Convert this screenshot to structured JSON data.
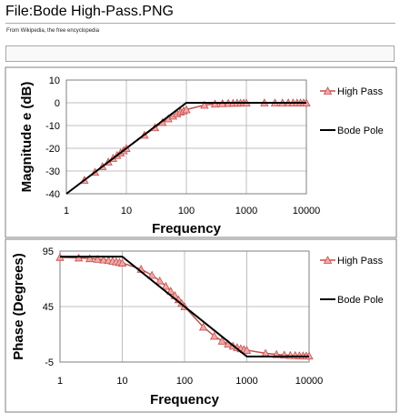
{
  "page": {
    "title": "File:Bode High-Pass.PNG",
    "tagline": "From Wikipedia, the free encyclopedia"
  },
  "colors": {
    "high_pass_line": "#c0504d",
    "high_pass_marker_fill": "#f2a7a5",
    "high_pass_marker_stroke": "#c0504d",
    "bode_pole_line": "#000000",
    "grid": "#bfbfbf",
    "panel_border": "#808080"
  },
  "chart_data": [
    {
      "type": "line",
      "xlabel": "Frequency",
      "ylabel": "Magnitude e (dB)",
      "xscale": "log",
      "xlim": [
        1,
        10000
      ],
      "ylim": [
        -40,
        10
      ],
      "xticks": [
        "1",
        "10",
        "100",
        "1000",
        "10000"
      ],
      "yticks": [
        "10",
        "0",
        "-10",
        "-20",
        "-30",
        "-40"
      ],
      "grid": true,
      "legend_position": "right",
      "series": [
        {
          "name": "High Pass",
          "marker": "triangle",
          "x": [
            2,
            3,
            4,
            5,
            6,
            7,
            8,
            9,
            10,
            20,
            30,
            40,
            50,
            60,
            70,
            80,
            90,
            100,
            200,
            300,
            400,
            500,
            600,
            700,
            800,
            900,
            1000,
            2000,
            3000,
            4000,
            5000,
            6000,
            7000,
            8000,
            9000,
            10000
          ],
          "y": [
            -34,
            -30.5,
            -28,
            -26,
            -24.4,
            -23.1,
            -22,
            -21,
            -20.04,
            -14.2,
            -10.9,
            -8.6,
            -7,
            -5.8,
            -4.8,
            -4,
            -3.5,
            -3,
            -1,
            -0.5,
            -0.3,
            -0.2,
            -0.12,
            -0.09,
            -0.07,
            -0.05,
            -0.04,
            -0.01,
            0,
            0,
            0,
            0,
            0,
            0,
            0,
            0
          ]
        },
        {
          "name": "Bode Pole",
          "x": [
            1,
            100,
            10000
          ],
          "y": [
            -40,
            0,
            0
          ]
        }
      ]
    },
    {
      "type": "line",
      "xlabel": "Frequency",
      "ylabel": "Phase (Degrees)",
      "xscale": "log",
      "xlim": [
        1,
        10000
      ],
      "ylim": [
        -5,
        95
      ],
      "xticks": [
        "1",
        "10",
        "100",
        "1000",
        "10000"
      ],
      "yticks": [
        "95",
        "45",
        "-5"
      ],
      "grid": true,
      "legend_position": "right",
      "series": [
        {
          "name": "High Pass",
          "marker": "triangle",
          "x": [
            1,
            2,
            3,
            4,
            5,
            6,
            7,
            8,
            9,
            10,
            20,
            30,
            40,
            50,
            60,
            70,
            80,
            90,
            100,
            200,
            300,
            400,
            500,
            600,
            700,
            800,
            900,
            1000,
            2000,
            3000,
            4000,
            5000,
            6000,
            7000,
            8000,
            9000,
            10000
          ],
          "y": [
            89.4,
            88.9,
            88.3,
            87.7,
            87.1,
            86.6,
            86,
            85.4,
            84.9,
            84.3,
            78.7,
            73.3,
            68.2,
            63.4,
            59,
            55,
            51.3,
            48,
            45,
            26.6,
            18.4,
            14,
            11.3,
            9.5,
            8.1,
            7.1,
            6.3,
            5.7,
            2.9,
            1.9,
            1.4,
            1.1,
            1,
            0.8,
            0.7,
            0.6,
            0.6
          ]
        },
        {
          "name": "Bode Pole",
          "x": [
            1,
            10,
            1000,
            10000
          ],
          "y": [
            90,
            90,
            0,
            0
          ]
        }
      ]
    }
  ]
}
